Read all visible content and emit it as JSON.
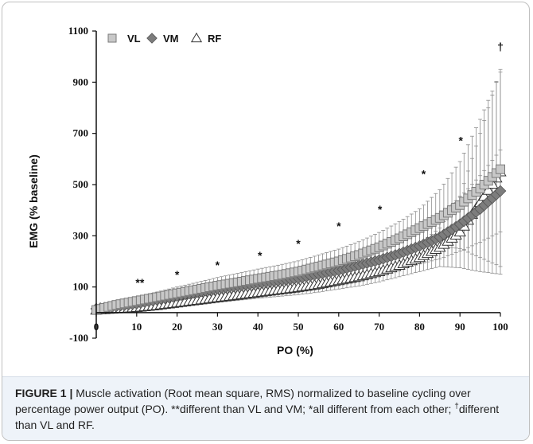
{
  "colors": {
    "vl_fill": "#c8c8c8",
    "vl_stroke": "#7a7a7a",
    "vm_fill": "#7d7d7d",
    "rf_fill": "#ffffff",
    "axis": "#111111",
    "error_bar": "#8c8c8c",
    "caption_bg": "#eef3f9"
  },
  "legend_symbols": [
    "square-icon",
    "diamond-icon",
    "triangle-icon"
  ],
  "caption": {
    "label": "FIGURE 1 |",
    "text": " Muscle activation (Root mean square, RMS) normalized to baseline cycling over percentage power output (PO). **different than VL and VM; *all different from each other; ",
    "dagger": "†",
    "text_end": "different than VL and RF."
  },
  "chart_data": {
    "type": "scatter",
    "title": "",
    "xlabel": "PO (%)",
    "ylabel": "EMG (% baseline)",
    "xlim": [
      0,
      100
    ],
    "ylim": [
      -100,
      1100
    ],
    "xticks": [
      0,
      10,
      20,
      30,
      40,
      50,
      60,
      70,
      80,
      90,
      100
    ],
    "xtick_labels": [
      "0",
      "10",
      "20",
      "30",
      "40",
      "50",
      "60",
      "70",
      "80",
      "90",
      "100"
    ],
    "yticks": [
      -100,
      100,
      300,
      500,
      700,
      900,
      1100
    ],
    "ytick_labels": [
      "-100",
      "100",
      "300",
      "500",
      "700",
      "900",
      "1100"
    ],
    "grid": false,
    "legend_placement": "top-left",
    "series": [
      {
        "name": "VL",
        "marker": "square",
        "x": [
          0,
          5,
          10,
          15,
          20,
          25,
          30,
          35,
          40,
          45,
          50,
          55,
          60,
          65,
          70,
          75,
          80,
          85,
          90,
          95,
          100
        ],
        "y": [
          10,
          30,
          45,
          60,
          75,
          90,
          105,
          118,
          132,
          145,
          160,
          180,
          200,
          225,
          255,
          290,
          330,
          370,
          420,
          485,
          560
        ],
        "error": [
          5,
          10,
          15,
          20,
          25,
          28,
          32,
          35,
          38,
          40,
          42,
          45,
          48,
          52,
          58,
          65,
          75,
          110,
          170,
          270,
          380
        ]
      },
      {
        "name": "VM",
        "marker": "diamond",
        "x": [
          0,
          5,
          10,
          15,
          20,
          25,
          30,
          35,
          40,
          45,
          50,
          55,
          60,
          65,
          70,
          75,
          80,
          85,
          90,
          95,
          100
        ],
        "y": [
          15,
          25,
          35,
          50,
          65,
          80,
          95,
          105,
          115,
          125,
          135,
          150,
          165,
          185,
          205,
          230,
          260,
          295,
          345,
          405,
          475
        ],
        "error": [
          5,
          8,
          12,
          15,
          18,
          22,
          25,
          28,
          30,
          32,
          35,
          38,
          42,
          46,
          52,
          60,
          70,
          85,
          105,
          130,
          160
        ]
      },
      {
        "name": "RF",
        "marker": "triangle",
        "x": [
          0,
          5,
          10,
          15,
          20,
          25,
          30,
          35,
          40,
          45,
          50,
          55,
          60,
          65,
          70,
          75,
          80,
          85,
          90,
          95,
          100
        ],
        "y": [
          10,
          15,
          20,
          28,
          38,
          48,
          58,
          68,
          78,
          88,
          98,
          110,
          125,
          140,
          160,
          185,
          215,
          255,
          315,
          430,
          550
        ],
        "error": [
          5,
          6,
          8,
          10,
          12,
          15,
          18,
          20,
          22,
          25,
          28,
          30,
          33,
          36,
          40,
          45,
          55,
          75,
          140,
          270,
          400
        ]
      }
    ],
    "annotations": [
      {
        "text": "**",
        "x": 10.8,
        "y": 118
      },
      {
        "text": "*",
        "x": 20,
        "y": 148
      },
      {
        "text": "*",
        "x": 30,
        "y": 186
      },
      {
        "text": "*",
        "x": 40.5,
        "y": 224
      },
      {
        "text": "*",
        "x": 50,
        "y": 270
      },
      {
        "text": "*",
        "x": 60,
        "y": 338
      },
      {
        "text": "*",
        "x": 70.2,
        "y": 404
      },
      {
        "text": "*",
        "x": 81,
        "y": 542
      },
      {
        "text": "*",
        "x": 90.2,
        "y": 672
      },
      {
        "text": "†",
        "x": 100,
        "y": 1040
      }
    ]
  }
}
